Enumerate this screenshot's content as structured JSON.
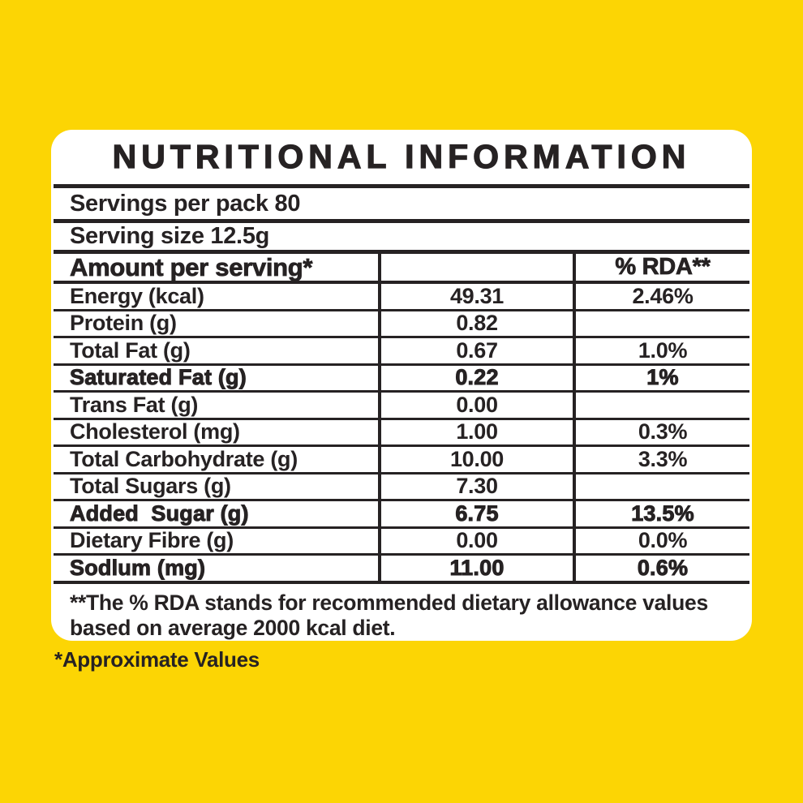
{
  "colors": {
    "background": "#FCD504",
    "panel": "#FFFFFF",
    "ink": "#262223"
  },
  "title": "NUTRITIONAL INFORMATION",
  "serving_info": {
    "servings_per_pack": "Servings per pack 80",
    "serving_size": "Serving size 12.5g"
  },
  "table": {
    "header": {
      "amount_label": "Amount per serving*",
      "middle_label": "",
      "rda_label": "% RDA**"
    },
    "rows": [
      {
        "label": "Energy (kcal)",
        "amount": "49.31",
        "rda": "2.46%",
        "bold": false
      },
      {
        "label": "Protein (g)",
        "amount": "0.82",
        "rda": "",
        "bold": false
      },
      {
        "label": "Total Fat (g)",
        "amount": "0.67",
        "rda": "1.0%",
        "bold": false
      },
      {
        "label": "Saturated Fat (g)",
        "amount": "0.22",
        "rda": "1%",
        "bold": true
      },
      {
        "label": "Trans Fat (g)",
        "amount": "0.00",
        "rda": "",
        "bold": false
      },
      {
        "label": "Cholesterol (mg)",
        "amount": "1.00",
        "rda": "0.3%",
        "bold": false
      },
      {
        "label": "Total Carbohydrate (g)",
        "amount": "10.00",
        "rda": "3.3%",
        "bold": false
      },
      {
        "label": "Total Sugars (g)",
        "amount": "7.30",
        "rda": "",
        "bold": false
      },
      {
        "label": "Added  Sugar (g)",
        "amount": "6.75",
        "rda": "13.5%",
        "bold": true
      },
      {
        "label": "Dietary Fibre (g)",
        "amount": "0.00",
        "rda": "0.0%",
        "bold": false
      },
      {
        "label": "Sodlum (mg)",
        "amount": "11.00",
        "rda": "0.6%",
        "bold": true
      }
    ]
  },
  "footnote": "**The % RDA stands for recommended dietary allowance values based on average 2000 kcal diet.",
  "approximate_note": "*Approximate Values"
}
